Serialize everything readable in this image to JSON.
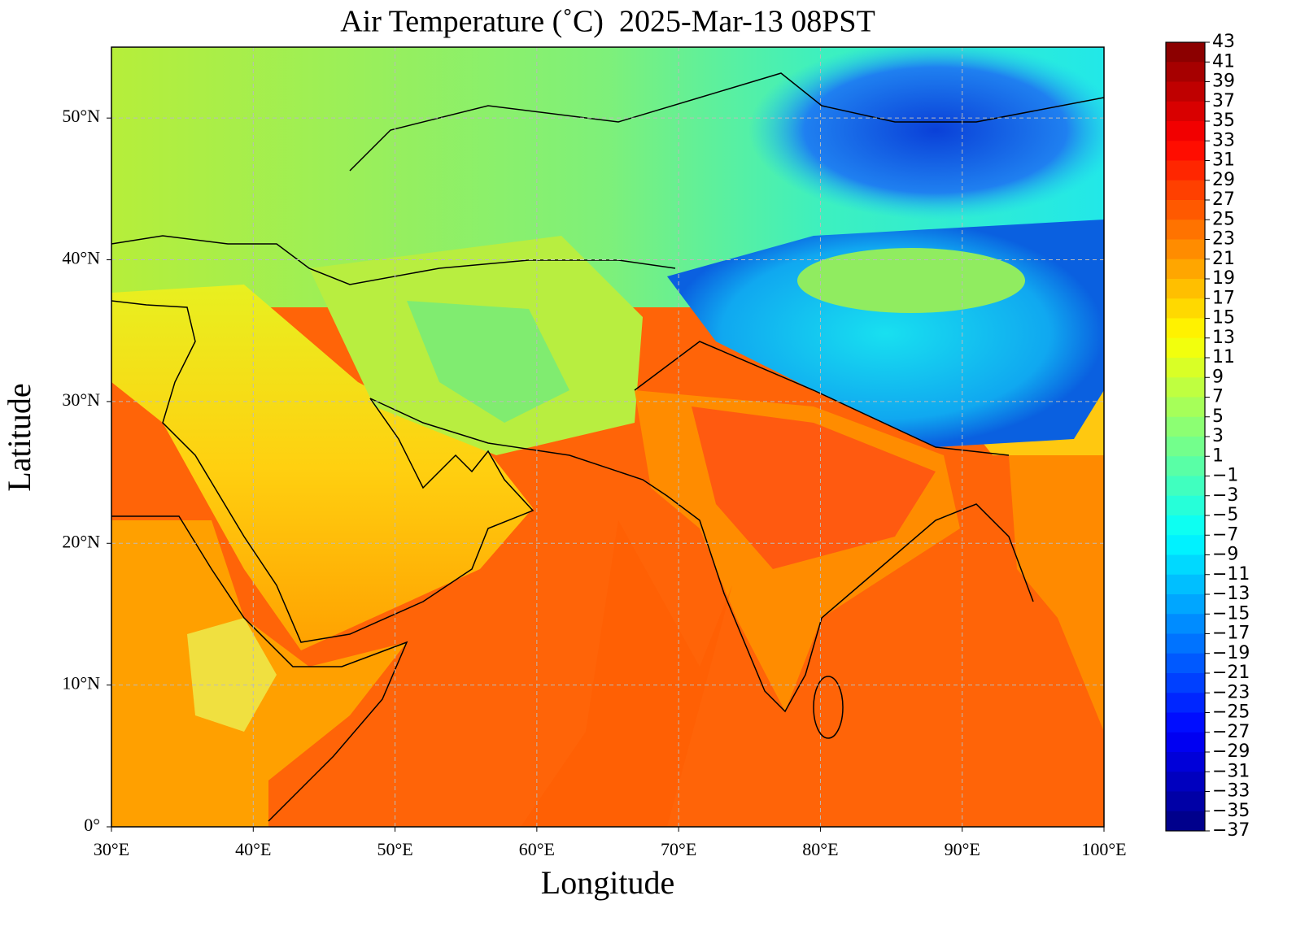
{
  "map": {
    "title": "Air Temperature (˚C)  2025-Mar-13 08PST",
    "x_label": "Longitude",
    "y_label": "Latitude",
    "xlim": [
      30,
      100
    ],
    "ylim": [
      0,
      55
    ],
    "xticks": [
      {
        "value": 30,
        "label": "30°E"
      },
      {
        "value": 40,
        "label": "40°E"
      },
      {
        "value": 50,
        "label": "50°E"
      },
      {
        "value": 60,
        "label": "60°E"
      },
      {
        "value": 70,
        "label": "70°E"
      },
      {
        "value": 80,
        "label": "80°E"
      },
      {
        "value": 90,
        "label": "90°E"
      },
      {
        "value": 100,
        "label": "100°E"
      }
    ],
    "yticks": [
      {
        "value": 0,
        "label": "0°"
      },
      {
        "value": 10,
        "label": "10°N"
      },
      {
        "value": 20,
        "label": "20°N"
      },
      {
        "value": 30,
        "label": "30°N"
      },
      {
        "value": 40,
        "label": "40°N"
      },
      {
        "value": 50,
        "label": "50°N"
      }
    ],
    "grid": true,
    "colorbar": {
      "ticks": [
        43,
        41,
        39,
        37,
        35,
        33,
        31,
        29,
        27,
        25,
        23,
        21,
        19,
        17,
        15,
        13,
        11,
        9,
        7,
        5,
        3,
        1,
        {
          "value": -1,
          "label": "−1"
        },
        {
          "value": -3,
          "label": "−3"
        },
        {
          "value": -5,
          "label": "−5"
        },
        {
          "value": -7,
          "label": "−7"
        },
        {
          "value": -9,
          "label": "−9"
        },
        {
          "value": -11,
          "label": "−11"
        },
        {
          "value": -13,
          "label": "−13"
        },
        {
          "value": -15,
          "label": "−15"
        },
        {
          "value": -17,
          "label": "−17"
        },
        {
          "value": -19,
          "label": "−19"
        },
        {
          "value": -21,
          "label": "−21"
        },
        {
          "value": -23,
          "label": "−23"
        },
        {
          "value": -25,
          "label": "−25"
        },
        {
          "value": -27,
          "label": "−27"
        },
        {
          "value": -29,
          "label": "−29"
        },
        {
          "value": -31,
          "label": "−31"
        },
        {
          "value": -33,
          "label": "−33"
        },
        {
          "value": -35,
          "label": "−35"
        },
        {
          "value": -37,
          "label": "−37"
        }
      ]
    }
  }
}
